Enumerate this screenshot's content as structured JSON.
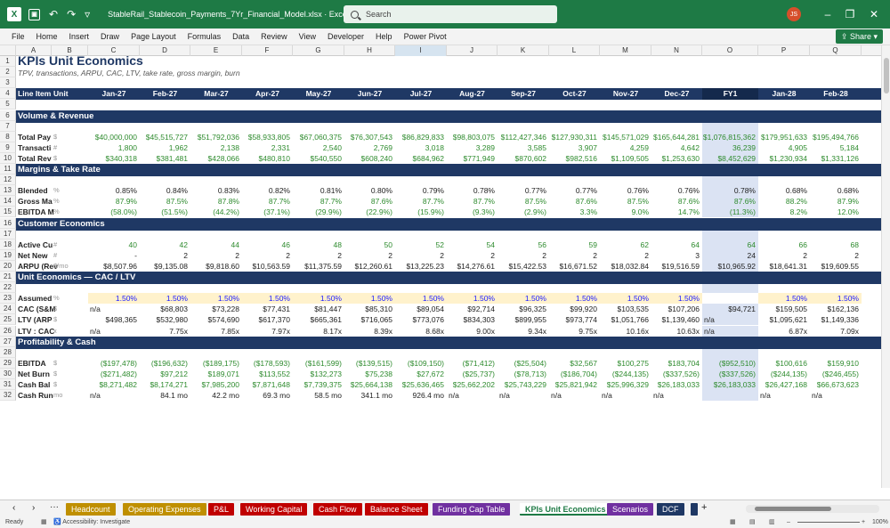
{
  "window": {
    "doc_title": "StableRail_Stablecoin_Payments_7Yr_Financial_Model.xlsx  ·  Excel",
    "search_placeholder": "Search",
    "user_initials": "JS"
  },
  "menu": [
    "File",
    "Home",
    "Insert",
    "Draw",
    "Page Layout",
    "Formulas",
    "Data",
    "Review",
    "View",
    "Developer",
    "Help",
    "Power Pivot"
  ],
  "share_label": "Share",
  "columns": [
    "A",
    "B",
    "C",
    "D",
    "E",
    "F",
    "G",
    "H",
    "I",
    "J",
    "K",
    "L",
    "M",
    "N",
    "O",
    "P",
    "Q"
  ],
  "title": "KPIs Unit Economics",
  "subtitle": "TPV, transactions, ARPU, CAC, LTV, take rate, gross margin, burn",
  "header": {
    "line_item": "Line Item",
    "unit": "Unit",
    "periods": [
      "Jan-27",
      "Feb-27",
      "Mar-27",
      "Apr-27",
      "May-27",
      "Jun-27",
      "Jul-27",
      "Aug-27",
      "Sep-27",
      "Oct-27",
      "Nov-27",
      "Dec-27",
      "FY1",
      "Jan-28",
      "Feb-28"
    ]
  },
  "rows": [
    {
      "row": 6,
      "type": "section",
      "label": "Volume & Revenue"
    },
    {
      "row": 8,
      "label": "Total Pay",
      "unit": "$",
      "color": "green",
      "values": [
        "$40,000,000",
        "$45,515,727",
        "$51,792,036",
        "$58,933,805",
        "$67,060,375",
        "$76,307,543",
        "$86,829,833",
        "$98,803,075",
        "$112,427,346",
        "$127,930,311",
        "$145,571,029",
        "$165,644,281",
        "$1,076,815,362",
        "$179,951,633",
        "$195,494,766"
      ]
    },
    {
      "row": 9,
      "label": "Transacti",
      "unit": "#",
      "color": "green",
      "values": [
        "1,800",
        "1,962",
        "2,138",
        "2,331",
        "2,540",
        "2,769",
        "3,018",
        "3,289",
        "3,585",
        "3,907",
        "4,259",
        "4,642",
        "36,239",
        "4,905",
        "5,184"
      ]
    },
    {
      "row": 10,
      "label": "Total Rev",
      "unit": "$",
      "color": "green",
      "values": [
        "$340,318",
        "$381,481",
        "$428,066",
        "$480,810",
        "$540,550",
        "$608,240",
        "$684,962",
        "$771,949",
        "$870,602",
        "$982,516",
        "$1,109,505",
        "$1,253,630",
        "$8,452,629",
        "$1,230,934",
        "$1,331,126"
      ]
    },
    {
      "row": 11,
      "type": "section",
      "label": "Margins & Take Rate"
    },
    {
      "row": 13,
      "label": "Blended",
      "unit": "%",
      "color": "dark",
      "values": [
        "0.85%",
        "0.84%",
        "0.83%",
        "0.82%",
        "0.81%",
        "0.80%",
        "0.79%",
        "0.78%",
        "0.77%",
        "0.77%",
        "0.76%",
        "0.76%",
        "0.78%",
        "0.68%",
        "0.68%"
      ]
    },
    {
      "row": 14,
      "label": "Gross Ma",
      "unit": "%",
      "color": "green",
      "values": [
        "87.9%",
        "87.5%",
        "87.8%",
        "87.7%",
        "87.7%",
        "87.6%",
        "87.7%",
        "87.7%",
        "87.5%",
        "87.6%",
        "87.5%",
        "87.6%",
        "87.6%",
        "88.2%",
        "87.9%"
      ]
    },
    {
      "row": 15,
      "label": "EBITDA M",
      "unit": "%",
      "color": "green",
      "values": [
        "(58.0%)",
        "(51.5%)",
        "(44.2%)",
        "(37.1%)",
        "(29.9%)",
        "(22.9%)",
        "(15.9%)",
        "(9.3%)",
        "(2.9%)",
        "3.3%",
        "9.0%",
        "14.7%",
        "(11.3%)",
        "8.2%",
        "12.0%"
      ]
    },
    {
      "row": 16,
      "type": "section",
      "label": "Customer Economics"
    },
    {
      "row": 18,
      "label": "Active Cu",
      "unit": "#",
      "color": "green",
      "values": [
        "40",
        "42",
        "44",
        "46",
        "48",
        "50",
        "52",
        "54",
        "56",
        "59",
        "62",
        "64",
        "64",
        "66",
        "68"
      ]
    },
    {
      "row": 19,
      "label": "Net New",
      "unit": "#",
      "color": "dark",
      "values": [
        "-",
        "2",
        "2",
        "2",
        "2",
        "2",
        "2",
        "2",
        "2",
        "2",
        "2",
        "3",
        "24",
        "2",
        "2"
      ]
    },
    {
      "row": 20,
      "label": "ARPU (Rev",
      "unit": "$/mo",
      "color": "dark",
      "values": [
        "$8,507.96",
        "$9,135.08",
        "$9,818.60",
        "$10,563.59",
        "$11,375.59",
        "$12,260.61",
        "$13,225.23",
        "$14,276.61",
        "$15,422.53",
        "$16,671.52",
        "$18,032.84",
        "$19,516.59",
        "$10,965.92",
        "$18,641.31",
        "$19,609.55"
      ]
    },
    {
      "row": 21,
      "type": "section",
      "label": "Unit Economics — CAC / LTV"
    },
    {
      "row": 23,
      "label": "Assumed",
      "unit": "%",
      "color": "blue",
      "assumption": true,
      "values": [
        "1.50%",
        "1.50%",
        "1.50%",
        "1.50%",
        "1.50%",
        "1.50%",
        "1.50%",
        "1.50%",
        "1.50%",
        "1.50%",
        "1.50%",
        "1.50%",
        "",
        "1.50%",
        "1.50%"
      ]
    },
    {
      "row": 24,
      "label": "CAC (S&M",
      "unit": "$",
      "color": "dark",
      "first": "n/a",
      "values": [
        "",
        "$68,803",
        "$73,228",
        "$77,431",
        "$81,447",
        "$85,310",
        "$89,054",
        "$92,714",
        "$96,325",
        "$99,920",
        "$103,535",
        "$107,206",
        "$94,721",
        "$159,505",
        "$162,136"
      ]
    },
    {
      "row": 25,
      "label": "LTV (ARP",
      "unit": "$",
      "color": "dark",
      "values": [
        "$498,365",
        "$532,980",
        "$574,690",
        "$617,370",
        "$665,361",
        "$716,065",
        "$773,076",
        "$834,303",
        "$899,955",
        "$973,774",
        "$1,051,766",
        "$1,139,460",
        "n/a",
        "$1,095,621",
        "$1,149,336"
      ]
    },
    {
      "row": 26,
      "label": "LTV : CAC",
      "unit": "x",
      "color": "dark",
      "first": "n/a",
      "values": [
        "",
        "7.75x",
        "7.85x",
        "7.97x",
        "8.17x",
        "8.39x",
        "8.68x",
        "9.00x",
        "9.34x",
        "9.75x",
        "10.16x",
        "10.63x",
        "n/a",
        "6.87x",
        "7.09x"
      ]
    },
    {
      "row": 27,
      "type": "section",
      "label": "Profitability & Cash"
    },
    {
      "row": 29,
      "label": "EBITDA",
      "unit": "$",
      "color": "green",
      "values": [
        "($197,478)",
        "($196,632)",
        "($189,175)",
        "($178,593)",
        "($161,599)",
        "($139,515)",
        "($109,150)",
        "($71,412)",
        "($25,504)",
        "$32,567",
        "$100,275",
        "$183,704",
        "($952,510)",
        "$100,616",
        "$159,910"
      ]
    },
    {
      "row": 30,
      "label": "Net Burn",
      "unit": "$",
      "color": "green",
      "values": [
        "($271,482)",
        "$97,212",
        "$189,071",
        "$113,552",
        "$132,273",
        "$75,238",
        "$27,672",
        "($25,737)",
        "($78,713)",
        "($186,704)",
        "($244,135)",
        "($337,526)",
        "($337,526)",
        "($244,135)",
        "($246,455)"
      ]
    },
    {
      "row": 31,
      "label": "Cash Bal",
      "unit": "$",
      "color": "green",
      "values": [
        "$8,271,482",
        "$8,174,271",
        "$7,985,200",
        "$7,871,648",
        "$7,739,375",
        "$25,664,138",
        "$25,636,465",
        "$25,662,202",
        "$25,743,229",
        "$25,821,942",
        "$25,996,329",
        "$26,183,033",
        "$26,183,033",
        "$26,427,168",
        "$66,673,623"
      ]
    },
    {
      "row": 32,
      "label": "Cash Run",
      "unit": "mo",
      "color": "dark",
      "values": [
        "n/a",
        "84.1 mo",
        "42.2 mo",
        "69.3 mo",
        "58.5 mo",
        "341.1 mo",
        "926.4 mo",
        "n/a",
        "n/a",
        "n/a",
        "n/a",
        "n/a",
        "",
        "n/a",
        "n/a"
      ]
    }
  ],
  "tabs": [
    {
      "label": "Headcount",
      "color": "#bf8f00"
    },
    {
      "label": "Operating Expenses",
      "color": "#bf8f00"
    },
    {
      "label": "P&L",
      "color": "#c00000"
    },
    {
      "label": "Working Capital",
      "color": "#c00000"
    },
    {
      "label": "Cash Flow",
      "color": "#c00000"
    },
    {
      "label": "Balance Sheet",
      "color": "#c00000"
    },
    {
      "label": "Funding Cap Table",
      "color": "#7030a0"
    },
    {
      "label": "KPIs Unit Economics",
      "color": "#ffffff",
      "active": true
    },
    {
      "label": "Scenarios",
      "color": "#7030a0"
    },
    {
      "label": "DCF",
      "color": "#1f3864"
    }
  ],
  "status": {
    "ready": "Ready",
    "accessibility": "Accessibility: Investigate",
    "zoom": "100%"
  }
}
